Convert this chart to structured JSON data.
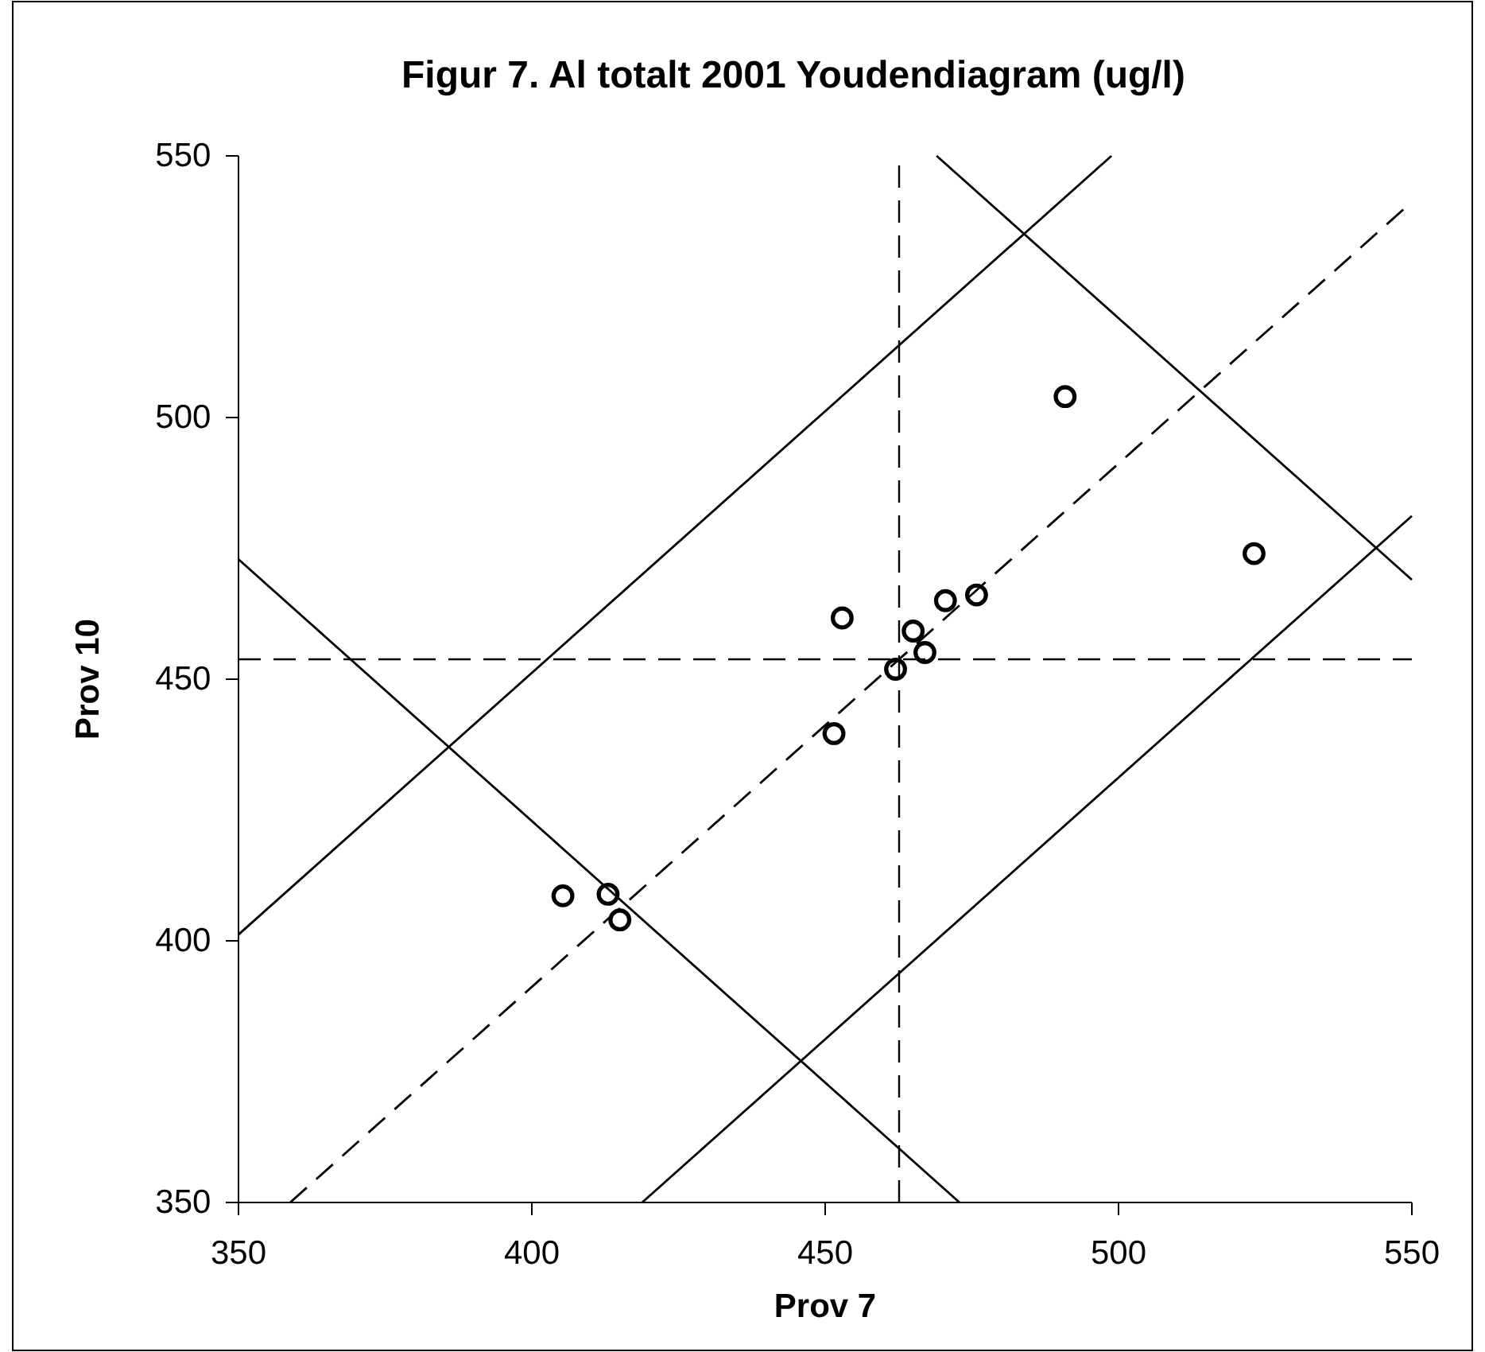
{
  "chart_data": {
    "type": "scatter",
    "title": "Figur 7. Al totalt 2001 Youdendiagram (ug/l)",
    "xlabel": "Prov 7",
    "ylabel": "Prov 10",
    "xlim": [
      350,
      550
    ],
    "ylim": [
      350,
      550
    ],
    "xticks": [
      350,
      400,
      450,
      500,
      550
    ],
    "yticks": [
      350,
      400,
      450,
      500,
      550
    ],
    "grid": false,
    "series": [
      {
        "marker": "circle",
        "color": "#000000",
        "x": [
          405.3,
          413.0,
          415.0,
          451.5,
          452.9,
          462.0,
          467.0,
          465.0,
          470.5,
          475.8,
          490.9,
          523.1
        ],
        "values": [
          408.6,
          408.9,
          404.0,
          439.6,
          461.7,
          451.9,
          455.1,
          459.2,
          465.0,
          466.1,
          504.0,
          474.0
        ]
      },
      {
        "type": "line",
        "color": "#000000",
        "line_style": "dashed",
        "marker": "none",
        "x": [
          358.8,
          550
        ],
        "values": [
          350,
          541.2
        ]
      },
      {
        "type": "line",
        "color": "#000000",
        "line_style": "solid",
        "marker": "none",
        "x": [
          350,
          498.8
        ],
        "values": [
          401.2,
          550
        ]
      },
      {
        "type": "line",
        "color": "#000000",
        "line_style": "solid",
        "marker": "none",
        "x": [
          418.8,
          550
        ],
        "values": [
          350,
          481.2
        ]
      },
      {
        "type": "line",
        "color": "#000000",
        "line_style": "solid",
        "marker": "none",
        "x": [
          350,
          472.9
        ],
        "values": [
          472.9,
          350
        ]
      },
      {
        "type": "line",
        "color": "#000000",
        "line_style": "solid",
        "marker": "none",
        "x": [
          469,
          550
        ],
        "values": [
          550,
          469
        ]
      }
    ],
    "ref_lines": [
      {
        "axis": "x",
        "value": 462.6,
        "color": "#000000",
        "line_style": "dashed"
      },
      {
        "axis": "y",
        "value": 453.8,
        "color": "#000000",
        "line_style": "dashed"
      }
    ]
  }
}
